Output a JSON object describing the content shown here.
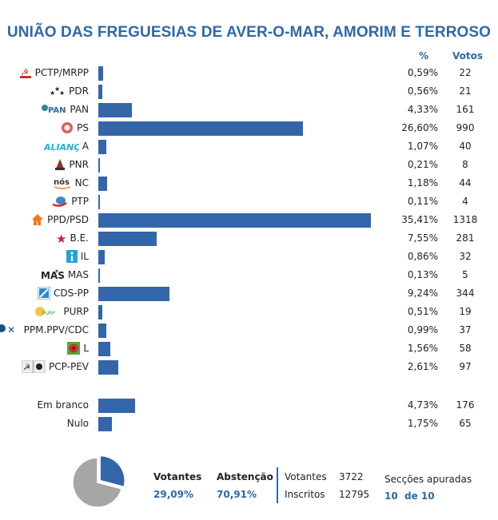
{
  "title": "UNIÃO DAS FREGUESIAS DE AVER-O-MAR, AMORIM E TERROSO",
  "headers": {
    "pct": "%",
    "votes": "Votos"
  },
  "colors": {
    "accent": "#2e68a9",
    "bar": "#3366a8",
    "pie_other": "#a6a6a6"
  },
  "chart_data": {
    "type": "bar",
    "orientation": "horizontal",
    "title": "UNIÃO DAS FREGUESIAS DE AVER-O-MAR, AMORIM E TERROSO",
    "unit": "%",
    "categories": [
      "PCTP/MRPP",
      "PDR",
      "PAN",
      "PS",
      "A",
      "PNR",
      "NC",
      "PTP",
      "PPD/PSD",
      "B.E.",
      "IL",
      "MAS",
      "CDS-PP",
      "PURP",
      "PPM.PPV/CDC",
      "L",
      "PCP-PEV",
      "Em branco",
      "Nulo"
    ],
    "rows": [
      {
        "label": "PCTP/MRPP",
        "logo": "pctp-mrpp-logo",
        "pct": 0.59,
        "pct_text": "0,59%",
        "votes": "22"
      },
      {
        "label": "PDR",
        "logo": "pdr-logo",
        "pct": 0.56,
        "pct_text": "0,56%",
        "votes": "21"
      },
      {
        "label": "PAN",
        "logo": "pan-logo",
        "pct": 4.33,
        "pct_text": "4,33%",
        "votes": "161"
      },
      {
        "label": "PS",
        "logo": "ps-logo",
        "pct": 26.6,
        "pct_text": "26,60%",
        "votes": "990"
      },
      {
        "label": "A",
        "logo": "alianca-logo",
        "logo_text": "ALIANÇA",
        "pct": 1.07,
        "pct_text": "1,07%",
        "votes": "40"
      },
      {
        "label": "PNR",
        "logo": "pnr-logo",
        "pct": 0.21,
        "pct_text": "0,21%",
        "votes": "8"
      },
      {
        "label": "NC",
        "logo": "nc-logo",
        "logo_text": "nós",
        "pct": 1.18,
        "pct_text": "1,18%",
        "votes": "44"
      },
      {
        "label": "PTP",
        "logo": "ptp-logo",
        "pct": 0.11,
        "pct_text": "0,11%",
        "votes": "4"
      },
      {
        "label": "PPD/PSD",
        "logo": "psd-logo",
        "pct": 35.41,
        "pct_text": "35,41%",
        "votes": "1318"
      },
      {
        "label": "B.E.",
        "logo": "be-logo",
        "pct": 7.55,
        "pct_text": "7,55%",
        "votes": "281"
      },
      {
        "label": "IL",
        "logo": "il-logo",
        "pct": 0.86,
        "pct_text": "0,86%",
        "votes": "32"
      },
      {
        "label": "MAS",
        "logo": "mas-logo",
        "logo_text": "MAS",
        "pct": 0.13,
        "pct_text": "0,13%",
        "votes": "5"
      },
      {
        "label": "CDS-PP",
        "logo": "cds-logo",
        "pct": 9.24,
        "pct_text": "9,24%",
        "votes": "344"
      },
      {
        "label": "PURP",
        "logo": "purp-logo",
        "pct": 0.51,
        "pct_text": "0,51%",
        "votes": "19"
      },
      {
        "label": "PPM.PPV/CDC",
        "logo": "ppm-logo",
        "pct": 0.99,
        "pct_text": "0,99%",
        "votes": "37"
      },
      {
        "label": "L",
        "logo": "livre-logo",
        "pct": 1.56,
        "pct_text": "1,56%",
        "votes": "58"
      },
      {
        "label": "PCP-PEV",
        "logo": "pcp-pev-logo",
        "pct": 2.61,
        "pct_text": "2,61%",
        "votes": "97"
      },
      {
        "label": "Em branco",
        "logo": null,
        "pct": 4.73,
        "pct_text": "4,73%",
        "votes": "176"
      },
      {
        "label": "Nulo",
        "logo": null,
        "pct": 1.75,
        "pct_text": "1,75%",
        "votes": "65"
      }
    ],
    "pie": {
      "type": "pie",
      "slices": [
        {
          "name": "Votantes",
          "value": 29.09
        },
        {
          "name": "Abstenção",
          "value": 70.91
        }
      ]
    }
  },
  "footer": {
    "votantes_label": "Votantes",
    "votantes_pct": "29,09%",
    "abstencao_label": "Abstenção",
    "abstencao_pct": "70,91%",
    "votantes_count_label": "Votantes",
    "votantes_count": "3722",
    "inscritos_label": "Inscritos",
    "inscritos_count": "12795",
    "seccoes_label": "Secções apuradas",
    "seccoes_done": "10",
    "seccoes_total": "de 10"
  }
}
